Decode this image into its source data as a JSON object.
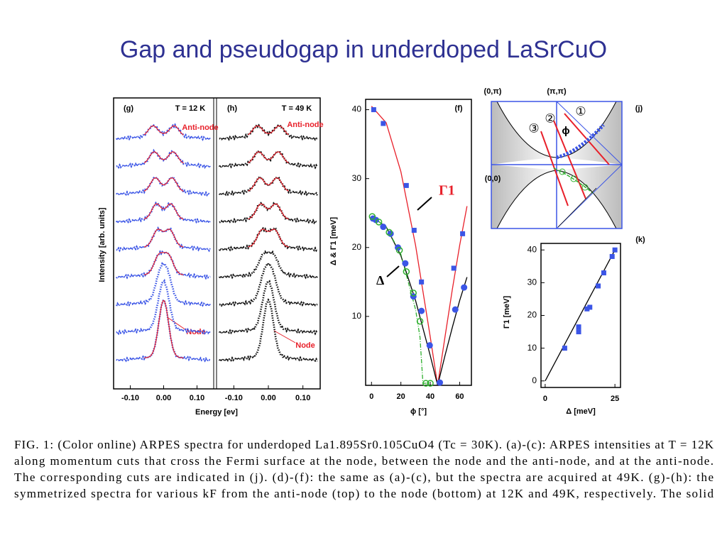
{
  "title": "Gap and pseudogap in underdoped LaSrCuO",
  "figure": {
    "panel_g": {
      "label": "(g)",
      "temperature": "T = 12 K",
      "anti_node": "Anti-node",
      "node": "Node"
    },
    "panel_h": {
      "label": "(h)",
      "temperature": "T = 49 K",
      "anti_node": "Anti-node",
      "node": "Node"
    },
    "spectra_axes": {
      "ylabel": "Intensity [arb. units]",
      "xlabel": "Energy [ev]",
      "xlim": [
        -0.15,
        0.15
      ],
      "xticks": [
        {
          "value": -0.1,
          "label": "-0.10"
        },
        {
          "value": 0,
          "label": "0.00"
        },
        {
          "value": 0.1,
          "label": "0.10"
        }
      ]
    },
    "panel_j": {
      "label": "(j)",
      "corners": [
        "(0,π)",
        "(π,π)",
        "(0,0)"
      ],
      "cuts": [
        "①",
        "②",
        "③"
      ],
      "angle": "ϕ"
    }
  },
  "chart_data": [
    {
      "type": "scatter",
      "label": "(f)",
      "xlabel": "ϕ [°]",
      "ylabel": "Δ & Γ1 [meV]",
      "annotations": [
        "Γ1",
        "Δ"
      ],
      "xlim": [
        -4,
        68
      ],
      "ylim": [
        0,
        41.5
      ],
      "xticks": [
        0,
        20,
        40,
        60
      ],
      "yticks": [
        10,
        20,
        30,
        40
      ],
      "series": [
        {
          "marker": "line",
          "color": "#e8202a",
          "x": [
            0,
            10,
            20,
            30,
            40,
            45,
            50,
            55,
            60,
            65
          ],
          "values": [
            40.5,
            38.1,
            31,
            20.3,
            7,
            0,
            7,
            13.9,
            20.3,
            26
          ]
        },
        {
          "marker": "line",
          "color": "#000000",
          "x": [
            0,
            10,
            20,
            30,
            40,
            45,
            50,
            55,
            60,
            65
          ],
          "values": [
            24.5,
            23,
            18.8,
            12.3,
            4.3,
            0,
            4.3,
            8.4,
            12.3,
            15.7
          ]
        },
        {
          "marker": "dashdot",
          "color": "#2fb02f",
          "x": [
            0,
            10,
            20,
            30,
            33,
            35,
            40
          ],
          "values": [
            24.5,
            23,
            19,
            11,
            7,
            0.3,
            0.3
          ]
        },
        {
          "marker": "square",
          "color": "#3b55e6",
          "x": [
            1.5,
            8,
            23.7,
            29,
            34,
            56,
            62
          ],
          "values": [
            40,
            38,
            29,
            22.5,
            15,
            17,
            22
          ]
        },
        {
          "marker": "circle",
          "color": "#3b55e6",
          "x": [
            1,
            3,
            8,
            13,
            18,
            23,
            28.5,
            34,
            39.6,
            46.5,
            57,
            63
          ],
          "values": [
            24.2,
            24,
            23,
            22,
            20,
            17.7,
            12.9,
            10.8,
            5.8,
            0.4,
            11,
            14.2
          ]
        },
        {
          "marker": "open-circle",
          "color": "#2fb02f",
          "x": [
            0.5,
            5,
            12,
            19,
            23.7,
            28.5,
            33,
            37,
            40
          ],
          "values": [
            24.5,
            23.7,
            22.2,
            19.6,
            16.5,
            13.4,
            9.3,
            0.3,
            0.3
          ]
        }
      ]
    },
    {
      "type": "scatter",
      "label": "(k)",
      "xlabel": "Δ [meV]",
      "ylabel": "Γ1 [meV]",
      "xlim": [
        -1.5,
        27
      ],
      "ylim": [
        -2,
        42
      ],
      "xticks": [
        0,
        25
      ],
      "yticks": [
        0,
        10,
        20,
        30,
        40
      ],
      "series": [
        {
          "marker": "line",
          "color": "#000000",
          "x": [
            0,
            25
          ],
          "values": [
            0,
            40
          ]
        },
        {
          "marker": "square",
          "color": "#3b55e6",
          "x": [
            7,
            12,
            12,
            15,
            16,
            19,
            21,
            24,
            25
          ],
          "values": [
            10,
            15,
            16.5,
            22,
            22.5,
            29,
            33,
            38,
            40
          ]
        }
      ]
    }
  ],
  "caption": [
    "FIG. 1: (Color online) ARPES spectra for underdoped La1.895Sr0.105CuO4 (Tc = 30K). (a)-(c): ARPES intensities at T = 12K",
    "along momentum cuts that cross the Fermi surface at the node, between the node and the anti-node, and at the anti-node.",
    "The corresponding cuts are indicated in (j). (d)-(f): the same as (a)-(c), but the spectra are acquired at 49K. (g)-(h): the",
    "symmetrized spectra for various kF from the anti-node (top) to the node (bottom) at 12K and 49K, respectively. The solid"
  ]
}
